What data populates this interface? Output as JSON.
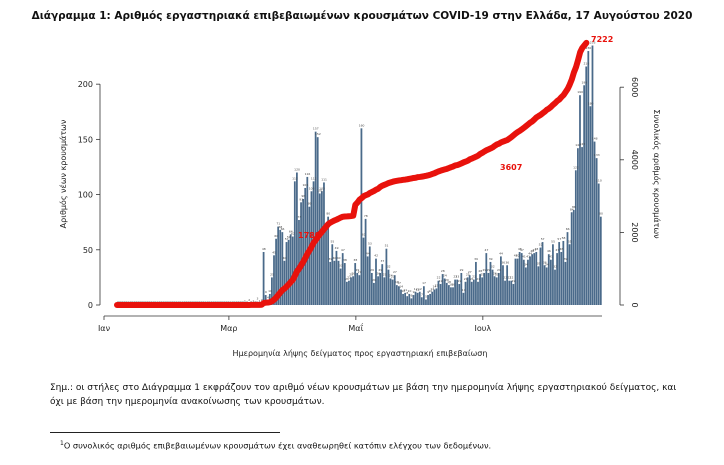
{
  "chart_data": {
    "type": "bar",
    "title": "Διάγραμμα 1: Αριθμός εργαστηριακά επιβεβαιωμένων κρουσμάτων COVID-19 στην Ελλάδα, 17 Αυγούστου 2020",
    "xlabel": "Ημερομηνία λήψης δείγματος προς εργαστηριακή επιβεβαίωση",
    "ylabel": "Αριθμός νέων κρουσμάτων",
    "y2label": "Συνολικός αριθμός κρουσμάτων",
    "x_ticks": [
      "Ιαν",
      "Μαρ",
      "Μαΐ",
      "Ιουλ"
    ],
    "y_ticks": [
      0,
      50,
      100,
      150,
      200
    ],
    "y2_ticks": [
      0,
      2000,
      4000,
      6000
    ],
    "ylim": [
      0,
      240
    ],
    "y2lim": [
      0,
      7300
    ],
    "colors": {
      "bars": "#4a6a8a",
      "line": "#e8120c",
      "label": "#e8120c"
    },
    "series": [
      {
        "type": "bar",
        "values": [
          0,
          0,
          0,
          0,
          0,
          0,
          0,
          0,
          0,
          0,
          0,
          0,
          0,
          0,
          0,
          0,
          0,
          0,
          0,
          0,
          0,
          0,
          0,
          0,
          0,
          0,
          0,
          0,
          0,
          0,
          0,
          0,
          0,
          0,
          0,
          0,
          0,
          0,
          0,
          0,
          0,
          0,
          0,
          0,
          0,
          0,
          0,
          0,
          0,
          0,
          0,
          0,
          0,
          0,
          0,
          0,
          0,
          0,
          0,
          0,
          0,
          1,
          0,
          2,
          0,
          1,
          0,
          3,
          1,
          2,
          48,
          9,
          4,
          10,
          25,
          45,
          60,
          71,
          68,
          66,
          40,
          57,
          59,
          64,
          62,
          112,
          120,
          77,
          93,
          96,
          106,
          116,
          89,
          103,
          112,
          157,
          152,
          101,
          103,
          111,
          70,
          80,
          39,
          55,
          40,
          49,
          40,
          33,
          47,
          38,
          21,
          22,
          25,
          26,
          38,
          29,
          27,
          160,
          61,
          78,
          44,
          53,
          29,
          20,
          42,
          26,
          29,
          37,
          25,
          51,
          32,
          24,
          23,
          27,
          18,
          17,
          14,
          10,
          11,
          8,
          10,
          6,
          9,
          12,
          11,
          12,
          7,
          17,
          5,
          9,
          10,
          12,
          14,
          15,
          22,
          19,
          28,
          24,
          20,
          18,
          16,
          16,
          23,
          23,
          19,
          29,
          11,
          21,
          25,
          27,
          21,
          23,
          39,
          21,
          28,
          25,
          29,
          47,
          29,
          39,
          32,
          26,
          25,
          29,
          44,
          36,
          22,
          36,
          22,
          22,
          19,
          42,
          42,
          48,
          47,
          41,
          34,
          41,
          44,
          46,
          47,
          48,
          35,
          52,
          57,
          36,
          34,
          46,
          41,
          55,
          32,
          47,
          57,
          48,
          58,
          39,
          66,
          55,
          84,
          86,
          122,
          142,
          190,
          143,
          199,
          216,
          230,
          180,
          235,
          148,
          133,
          110,
          80
        ]
      },
      {
        "type": "line",
        "name": "cumulative",
        "values_start_index": 61,
        "values": [
          0,
          1,
          1,
          2,
          2,
          3,
          3,
          5,
          7,
          55,
          64,
          68,
          78,
          103,
          148,
          208,
          279,
          347,
          413,
          453,
          510,
          569,
          633,
          695,
          807,
          927,
          1004,
          1097,
          1193,
          1299,
          1415,
          1504,
          1607,
          1719,
          1789,
          1876,
          1950,
          2020,
          2090,
          2160,
          2230,
          2270,
          2300,
          2330,
          2352,
          2380,
          2410,
          2432,
          2437,
          2440,
          2445,
          2450,
          2460,
          2760,
          2821,
          2899,
          2943,
          2996,
          3025,
          3045,
          3087,
          3113,
          3142,
          3179,
          3204,
          3255,
          3287,
          3311,
          3334,
          3361,
          3379,
          3396,
          3410,
          3420,
          3431,
          3439,
          3449,
          3455,
          3464,
          3476,
          3487,
          3499,
          3506,
          3523,
          3528,
          3537,
          3547,
          3559,
          3573,
          3588,
          3610,
          3629,
          3657,
          3681,
          3701,
          3719,
          3735,
          3751,
          3774,
          3797,
          3816,
          3845,
          3856,
          3877,
          3902,
          3929,
          3950,
          3973,
          4012,
          4033,
          4061,
          4086,
          4115,
          4162,
          4191,
          4230,
          4262,
          4288,
          4313,
          4342,
          4386,
          4422,
          4444,
          4480,
          4502,
          4524,
          4543,
          4585,
          4627,
          4675,
          4722,
          4763,
          4797,
          4838,
          4882,
          4928,
          4975,
          5023,
          5058,
          5110,
          5167,
          5203,
          5237,
          5283,
          5324,
          5379,
          5411,
          5458,
          5515,
          5563,
          5621,
          5660,
          5726,
          5781,
          5865,
          5951,
          6073,
          6215,
          6405,
          6548,
          6747,
          6963,
          7080,
          7150,
          7222
        ]
      }
    ],
    "annotations": [
      "1789",
      "3607",
      "7222"
    ],
    "grid": false,
    "legend": "none"
  },
  "note": "Σημ.: οι στήλες στο Διάγραμμα 1 εκφράζουν τον αριθμό νέων κρουσμάτων με βάση την ημερομηνία λήψης εργαστηριακού δείγματος, και όχι με βάση την ημερομηνία ανακοίνωσης των κρουσμάτων.",
  "footnote": {
    "marker": "1",
    "text": "Ο συνολικός αριθμός επιβεβαιωμένων κρουσμάτων έχει αναθεωρηθεί κατόπιν ελέγχου των δεδομένων."
  }
}
